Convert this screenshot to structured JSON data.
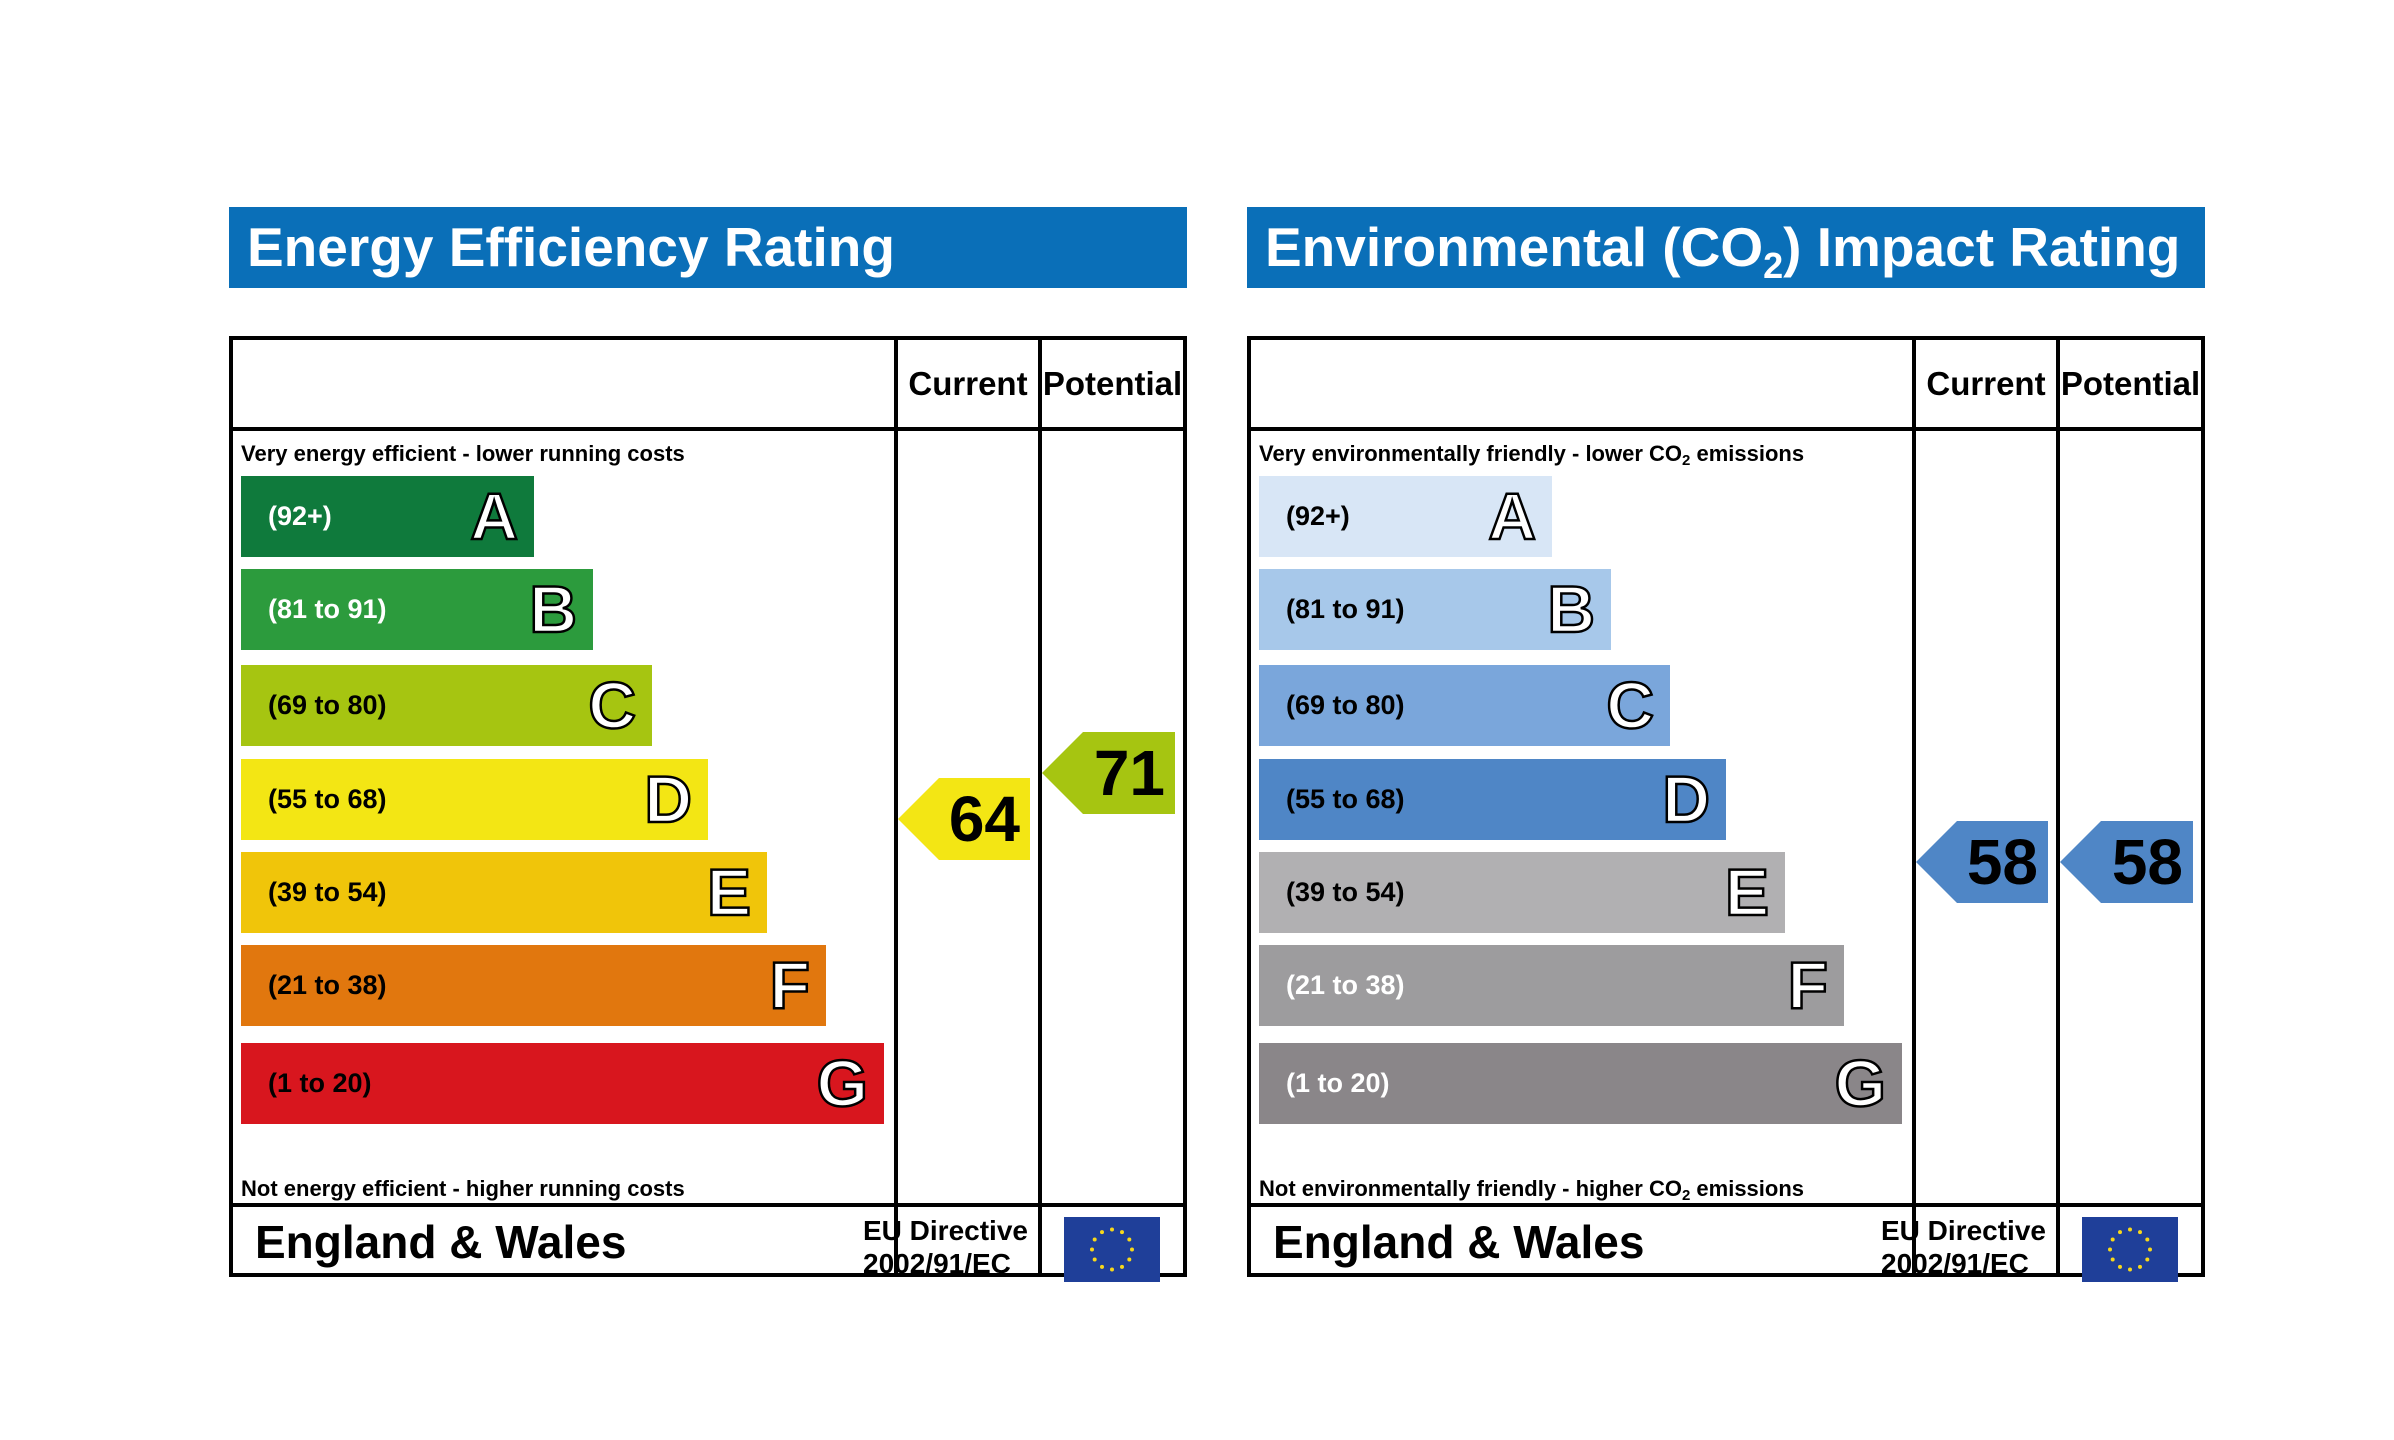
{
  "colors": {
    "title_bar": "#0a6fb8",
    "eu_flag": "#1f3f99",
    "eu_stars": "#f7d81b"
  },
  "panels": [
    {
      "title": "Energy Efficiency Rating",
      "col_current": "Current",
      "col_potential": "Potential",
      "top_caption": "Very energy efficient - lower running costs",
      "bottom_caption": "Not energy efficient - higher running costs",
      "footer": "England & Wales",
      "directive_line1": "EU Directive",
      "directive_line2": "2002/91/EC",
      "bands": [
        {
          "range": "(92+)",
          "letter": "A",
          "color": "#0f7a3c",
          "text_color": "#ffffff"
        },
        {
          "range": "(81 to 91)",
          "letter": "B",
          "color": "#2c9b3d",
          "text_color": "#ffffff"
        },
        {
          "range": "(69 to 80)",
          "letter": "C",
          "color": "#a6c511",
          "text_color": "#000000"
        },
        {
          "range": "(55 to 68)",
          "letter": "D",
          "color": "#f3e614",
          "text_color": "#000000"
        },
        {
          "range": "(39 to 54)",
          "letter": "E",
          "color": "#f0c50a",
          "text_color": "#000000"
        },
        {
          "range": "(21 to 38)",
          "letter": "F",
          "color": "#e1770e",
          "text_color": "#000000"
        },
        {
          "range": "(1 to 20)",
          "letter": "G",
          "color": "#d8161e",
          "text_color": "#000000"
        }
      ],
      "current": {
        "value": "64",
        "color": "#f3e614"
      },
      "potential": {
        "value": "71",
        "color": "#a6c511"
      }
    },
    {
      "title_pre": "Environmental (CO",
      "title_sub": "2",
      "title_post": ") Impact Rating",
      "col_current": "Current",
      "col_potential": "Potential",
      "top_caption_pre": "Very environmentally friendly - lower CO",
      "top_caption_sub": "2",
      "top_caption_post": " emissions",
      "bottom_caption_pre": "Not environmentally friendly - higher CO",
      "bottom_caption_sub": "2",
      "bottom_caption_post": " emissions",
      "footer": "England & Wales",
      "directive_line1": "EU Directive",
      "directive_line2": "2002/91/EC",
      "bands": [
        {
          "range": "(92+)",
          "letter": "A",
          "color": "#d8e6f6",
          "text_color": "#000000"
        },
        {
          "range": "(81 to 91)",
          "letter": "B",
          "color": "#a7c8ea",
          "text_color": "#000000"
        },
        {
          "range": "(69 to 80)",
          "letter": "C",
          "color": "#7aa6db",
          "text_color": "#000000"
        },
        {
          "range": "(55 to 68)",
          "letter": "D",
          "color": "#4f86c6",
          "text_color": "#000000"
        },
        {
          "range": "(39 to 54)",
          "letter": "E",
          "color": "#b1b0b2",
          "text_color": "#000000"
        },
        {
          "range": "(21 to 38)",
          "letter": "F",
          "color": "#9d9c9e",
          "text_color": "#ffffff"
        },
        {
          "range": "(1 to 20)",
          "letter": "G",
          "color": "#8a8689",
          "text_color": "#ffffff"
        }
      ],
      "current": {
        "value": "58",
        "color": "#4f86c6"
      },
      "potential": {
        "value": "58",
        "color": "#4f86c6"
      }
    }
  ],
  "chart_data": [
    {
      "type": "bar",
      "title": "Energy Efficiency Rating",
      "categories": [
        "A",
        "B",
        "C",
        "D",
        "E",
        "F",
        "G"
      ],
      "ranges": [
        "(92+)",
        "(81 to 91)",
        "(69 to 80)",
        "(55 to 68)",
        "(39 to 54)",
        "(21 to 38)",
        "(1 to 20)"
      ],
      "current": 64,
      "potential": 71
    },
    {
      "type": "bar",
      "title": "Environmental (CO2) Impact Rating",
      "categories": [
        "A",
        "B",
        "C",
        "D",
        "E",
        "F",
        "G"
      ],
      "ranges": [
        "(92+)",
        "(81 to 91)",
        "(69 to 80)",
        "(55 to 68)",
        "(39 to 54)",
        "(21 to 38)",
        "(1 to 20)"
      ],
      "current": 58,
      "potential": 58
    }
  ]
}
